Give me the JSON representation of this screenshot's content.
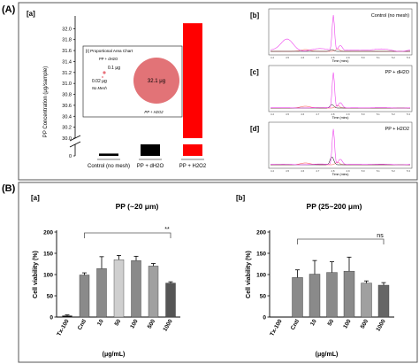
{
  "panel_A": {
    "label": "(A)",
    "sub_a": "[a]",
    "sub_b": "[b]",
    "sub_c": "[c]",
    "sub_d": "[d]",
    "inset": {
      "title": "[I] Proportional Area Chart",
      "label_dh2o": "PP + dH2O",
      "val_dh2o": "0.1 μg",
      "val_nomesh": "0.02 μg",
      "label_nomesh": "No Mesh",
      "val_h2o2": "32.1 μg",
      "label_h2o2": "PP + H2O2"
    },
    "chromatograms": {
      "b_title": "Control (no mesh)",
      "c_title": "PP + dH2O",
      "d_title": "PP + H2O2",
      "xlabel": "Time (mins)",
      "xticks": [
        "4.4",
        "4.5",
        "4.6",
        "4.7",
        "4.8",
        "4.9",
        "5.0",
        "5.1",
        "5.2",
        "5.3"
      ]
    }
  },
  "panel_B": {
    "label": "(B)",
    "sub_a": "[a]",
    "sub_b": "[b]",
    "annot_a": "**",
    "annot_b": "ns"
  },
  "chart_data": [
    {
      "type": "bar",
      "subtitle": "[a]",
      "ylabel": "PP Concentration (μg/sample)",
      "categories": [
        "Control (no mesh)",
        "PP + dH2O",
        "PP + H2O2"
      ],
      "values": [
        0.02,
        0.1,
        32.1
      ],
      "colors": [
        "#000000",
        "#000000",
        "#ff0000"
      ],
      "y_ticks_upper": [
        "30.0",
        "30.2",
        "30.4",
        "30.6",
        "30.8",
        "31.0",
        "31.2",
        "31.4",
        "31.6",
        "31.8",
        "32.0"
      ],
      "y_tick_lower": "0",
      "ylim_upper": [
        30.0,
        32.2
      ],
      "axis_break": [
        0.1,
        30.0
      ]
    },
    {
      "type": "bar",
      "title": "PP (~20 μm)",
      "subtitle": "[a]",
      "ylabel": "Cell viability (%)",
      "xlabel": "(μg/mL)",
      "categories": [
        "Tx-100",
        "Cntl",
        "10",
        "50",
        "100",
        "500",
        "1000"
      ],
      "values": [
        3,
        99,
        114,
        135,
        133,
        120,
        80
      ],
      "errors": [
        2,
        5,
        28,
        10,
        10,
        6,
        3
      ],
      "colors": [
        "#000000",
        "#8a8a8a",
        "#8a8a8a",
        "#cfcfcf",
        "#8a8a8a",
        "#a0a0a0",
        "#555555"
      ],
      "yticks": [
        "0",
        "50",
        "100",
        "150",
        "200"
      ],
      "ylim": [
        0,
        200
      ]
    },
    {
      "type": "bar",
      "title": "PP (25~200 μm)",
      "subtitle": "[b]",
      "ylabel": "Cell viability (%)",
      "xlabel": "(μg/mL)",
      "categories": [
        "Tx-100",
        "Cntl",
        "10",
        "50",
        "100",
        "500",
        "1000"
      ],
      "values": [
        0,
        93,
        101,
        105,
        108,
        80,
        75
      ],
      "errors": [
        0,
        18,
        32,
        25,
        33,
        5,
        6
      ],
      "colors": [
        "#000000",
        "#8a8a8a",
        "#8a8a8a",
        "#8a8a8a",
        "#8a8a8a",
        "#a0a0a0",
        "#666666"
      ],
      "yticks": [
        "0",
        "50",
        "100",
        "150",
        "200"
      ],
      "ylim": [
        0,
        200
      ]
    }
  ]
}
